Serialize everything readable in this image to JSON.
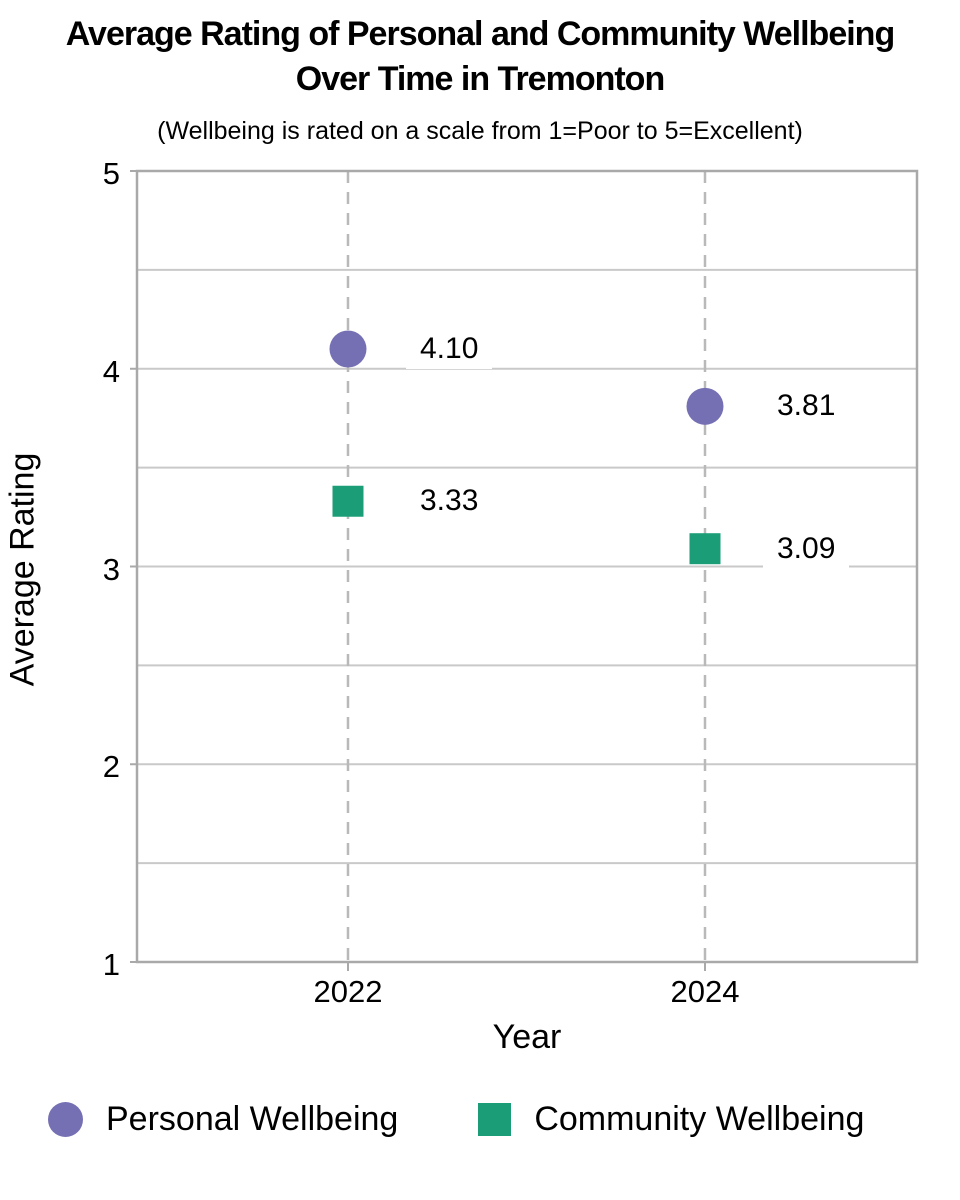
{
  "header": {
    "title_lines": [
      "Average Rating of Personal and Community Wellbeing",
      "Over Time in Tremonton"
    ],
    "subtitle": "(Wellbeing is rated on a scale from 1=Poor to 5=Excellent)"
  },
  "chart_data": {
    "type": "scatter",
    "title": "Average Rating of Personal and Community Wellbeing Over Time in Tremonton",
    "subtitle": "(Wellbeing is rated on a scale from 1=Poor to 5=Excellent)",
    "xlabel": "Year",
    "ylabel": "Average Rating",
    "categories": [
      "2022",
      "2024"
    ],
    "ylim": [
      1,
      5
    ],
    "yticks_major": [
      1,
      2,
      3,
      4,
      5
    ],
    "gridline_step": 0.5,
    "grid": "on",
    "legend_position": "bottom",
    "series": [
      {
        "name": "Personal Wellbeing",
        "marker": "circle",
        "color": "#7570B3",
        "values": [
          4.1,
          3.81
        ],
        "labels": [
          "4.10",
          "3.81"
        ]
      },
      {
        "name": "Community Wellbeing",
        "marker": "square",
        "color": "#1B9E77",
        "values": [
          3.33,
          3.09
        ],
        "labels": [
          "3.33",
          "3.09"
        ]
      }
    ],
    "colors": {
      "plot_border": "#a9a9a9",
      "gridline": "#c9c9c9",
      "dashed_guide": "#b9b9b9",
      "text": "#000000",
      "label_background": "#ffffff"
    }
  }
}
